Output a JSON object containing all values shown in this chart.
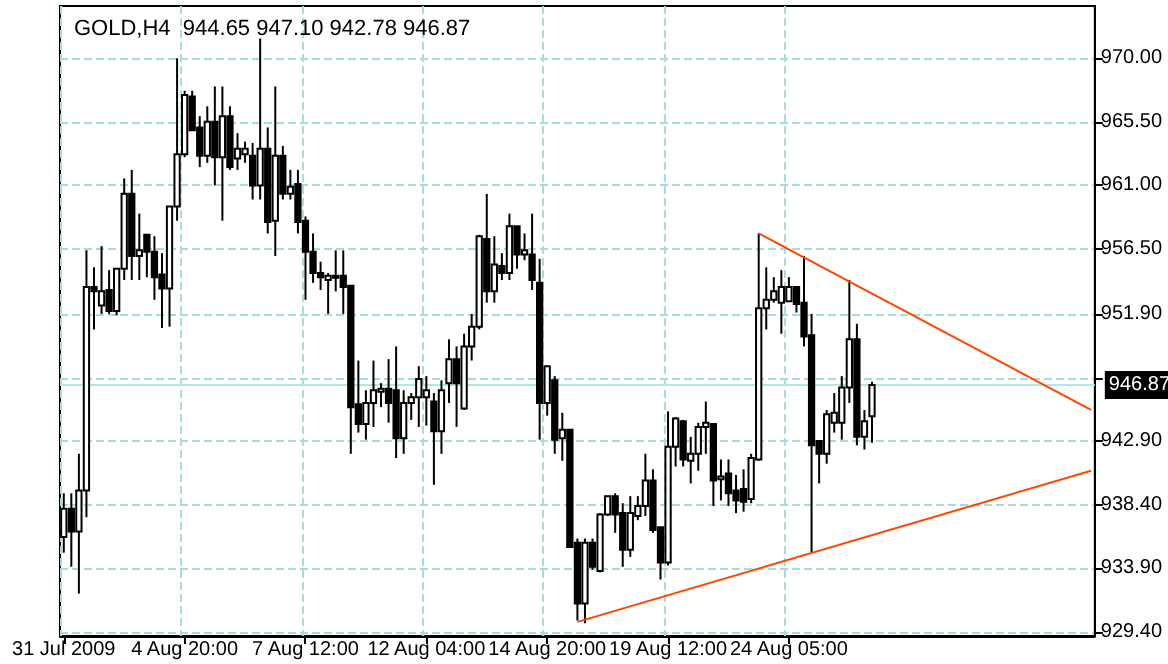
{
  "chart_data": {
    "type": "candlestick",
    "title": "GOLD,H4  944.65 947.10 942.78 946.87",
    "categories": [
      "31 Jul 2009",
      null,
      null,
      null,
      null,
      null,
      null,
      null,
      null,
      null,
      null,
      null,
      null,
      null,
      null,
      null,
      "4 Aug 20:00",
      null,
      null,
      null,
      null,
      null,
      null,
      null,
      null,
      null,
      null,
      null,
      null,
      null,
      null,
      null,
      "7 Aug 12:00",
      null,
      null,
      null,
      null,
      null,
      null,
      null,
      null,
      null,
      null,
      null,
      null,
      null,
      null,
      null,
      "12 Aug 04:00",
      null,
      null,
      null,
      null,
      null,
      null,
      null,
      null,
      null,
      null,
      null,
      null,
      null,
      null,
      null,
      "14 Aug 20:00",
      null,
      null,
      null,
      null,
      null,
      null,
      null,
      null,
      null,
      null,
      null,
      null,
      null,
      null,
      null,
      "19 Aug 12:00",
      null,
      null,
      null,
      null,
      null,
      null,
      null,
      null,
      null,
      null,
      null,
      null,
      null,
      null,
      null,
      "24 Aug 05:00",
      null,
      null,
      null,
      null,
      null,
      null,
      null,
      null,
      null,
      null,
      null,
      null,
      null,
      null,
      null,
      null,
      null,
      null,
      null,
      null,
      null,
      null,
      null,
      null,
      null,
      null,
      null,
      null,
      null,
      null,
      null,
      null,
      null,
      null,
      null,
      null,
      null,
      null,
      null,
      null
    ],
    "ohlc": [
      [
        936.1,
        939.2,
        935.0,
        938.1
      ],
      [
        938.1,
        939.2,
        934.0,
        936.5
      ],
      [
        936.5,
        942.0,
        932.1,
        939.4
      ],
      [
        939.4,
        956.4,
        937.5,
        953.8
      ],
      [
        953.8,
        955.2,
        950.8,
        953.5
      ],
      [
        952.5,
        956.7,
        951.9,
        953.5
      ],
      [
        953.6,
        955.0,
        951.9,
        952.1
      ],
      [
        952.1,
        955.1,
        951.8,
        955.1
      ],
      [
        955.1,
        961.5,
        954.3,
        960.4
      ],
      [
        960.4,
        962.1,
        954.3,
        956.0
      ],
      [
        956.0,
        959.0,
        954.3,
        956.4
      ],
      [
        957.5,
        957.5,
        954.5,
        956.3
      ],
      [
        956.3,
        957.4,
        952.9,
        954.5
      ],
      [
        954.7,
        956.2,
        950.9,
        953.7
      ],
      [
        953.7,
        959.5,
        951.0,
        959.5
      ],
      [
        959.5,
        970.0,
        958.5,
        963.2
      ],
      [
        963.2,
        967.7,
        963.0,
        967.4
      ],
      [
        967.3,
        967.7,
        964.9,
        964.9
      ],
      [
        965.1,
        965.9,
        962.3,
        963.1
      ],
      [
        963.1,
        966.6,
        962.6,
        965.5
      ],
      [
        965.5,
        968.0,
        961.0,
        963.0
      ],
      [
        963.0,
        968.0,
        958.5,
        965.9
      ],
      [
        965.9,
        966.6,
        962.1,
        962.3
      ],
      [
        962.9,
        964.7,
        962.1,
        963.6
      ],
      [
        963.2,
        964.1,
        962.6,
        963.6
      ],
      [
        963.1,
        964.0,
        960.0,
        961.0
      ],
      [
        961.0,
        971.4,
        960.0,
        963.6
      ],
      [
        963.6,
        965.1,
        957.6,
        958.4
      ],
      [
        958.5,
        968.0,
        956.0,
        963.1
      ],
      [
        963.1,
        963.8,
        960.0,
        960.4
      ],
      [
        960.4,
        962.1,
        960.0,
        960.9
      ],
      [
        961.1,
        962.1,
        957.6,
        958.4
      ],
      [
        958.5,
        958.8,
        952.9,
        956.3
      ],
      [
        956.3,
        957.6,
        954.1,
        954.8
      ],
      [
        954.8,
        955.6,
        953.6,
        954.5
      ],
      [
        954.3,
        954.8,
        951.9,
        954.6
      ],
      [
        954.5,
        956.4,
        953.5,
        954.6
      ],
      [
        954.6,
        956.4,
        951.9,
        953.8
      ],
      [
        953.9,
        953.9,
        942.0,
        945.3
      ],
      [
        945.5,
        948.6,
        943.5,
        944.1
      ],
      [
        944.1,
        946.5,
        943.0,
        945.6
      ],
      [
        945.6,
        948.6,
        943.9,
        946.5
      ],
      [
        946.4,
        947.0,
        945.3,
        946.6
      ],
      [
        946.6,
        948.7,
        944.2,
        945.6
      ],
      [
        946.5,
        949.6,
        941.7,
        943.1
      ],
      [
        943.1,
        946.5,
        942.0,
        945.6
      ],
      [
        945.6,
        946.3,
        944.4,
        946.0
      ],
      [
        946.0,
        948.2,
        943.9,
        947.3
      ],
      [
        946.0,
        947.5,
        944.0,
        946.5
      ],
      [
        945.7,
        946.3,
        939.8,
        943.6
      ],
      [
        943.6,
        947.2,
        942.0,
        946.5
      ],
      [
        947.0,
        950.1,
        945.6,
        948.7
      ],
      [
        948.7,
        949.6,
        943.9,
        947.0
      ],
      [
        945.2,
        950.5,
        945.1,
        949.6
      ],
      [
        949.6,
        951.9,
        948.6,
        951.0
      ],
      [
        951.0,
        957.5,
        950.8,
        957.4
      ],
      [
        957.2,
        960.4,
        952.7,
        953.5
      ],
      [
        953.5,
        957.4,
        952.7,
        955.4
      ],
      [
        955.3,
        956.2,
        954.3,
        954.8
      ],
      [
        954.8,
        959.0,
        954.3,
        958.1
      ],
      [
        958.1,
        958.1,
        955.1,
        956.1
      ],
      [
        956.1,
        957.6,
        955.7,
        956.4
      ],
      [
        956.1,
        959.0,
        953.6,
        954.3
      ],
      [
        954.1,
        955.8,
        943.0,
        945.6
      ],
      [
        945.6,
        948.2,
        944.7,
        948.2
      ],
      [
        947.2,
        947.5,
        942.0,
        943.0
      ],
      [
        943.1,
        944.9,
        941.5,
        943.7
      ],
      [
        943.7,
        943.7,
        935.4,
        935.4
      ],
      [
        935.7,
        936.0,
        930.2,
        931.4
      ],
      [
        931.4,
        936.0,
        930.0,
        935.7
      ],
      [
        935.7,
        936.0,
        933.8,
        934.0
      ],
      [
        933.7,
        937.8,
        933.6,
        937.7
      ],
      [
        937.7,
        939.0,
        937.6,
        939.0
      ],
      [
        939.0,
        939.2,
        936.4,
        937.7
      ],
      [
        937.8,
        938.5,
        934.0,
        935.2
      ],
      [
        935.2,
        939.0,
        934.7,
        937.8
      ],
      [
        937.6,
        939.0,
        937.3,
        938.3
      ],
      [
        938.3,
        942.0,
        937.6,
        940.1
      ],
      [
        940.1,
        940.9,
        936.4,
        936.6
      ],
      [
        936.8,
        936.8,
        933.1,
        934.3
      ],
      [
        934.3,
        945.0,
        934.1,
        942.5
      ],
      [
        942.5,
        944.6,
        941.1,
        944.5
      ],
      [
        944.3,
        944.4,
        941.1,
        941.6
      ],
      [
        941.5,
        943.2,
        939.9,
        942.0
      ],
      [
        942.0,
        944.2,
        940.8,
        943.9
      ],
      [
        943.9,
        945.7,
        942.0,
        944.2
      ],
      [
        944.1,
        944.1,
        938.3,
        940.1
      ],
      [
        940.2,
        941.6,
        938.7,
        940.4
      ],
      [
        940.6,
        941.6,
        938.3,
        939.2
      ],
      [
        939.4,
        940.5,
        937.8,
        938.7
      ],
      [
        939.5,
        940.9,
        937.9,
        938.6
      ],
      [
        938.8,
        942.0,
        938.5,
        941.7
      ],
      [
        941.6,
        957.6,
        941.5,
        952.3
      ],
      [
        952.3,
        955.2,
        950.8,
        952.9
      ],
      [
        952.9,
        954.5,
        952.7,
        953.5
      ],
      [
        952.7,
        955.0,
        950.5,
        953.8
      ],
      [
        952.8,
        954.5,
        952.8,
        953.8
      ],
      [
        953.8,
        953.8,
        952.0,
        952.6
      ],
      [
        952.7,
        956.0,
        949.6,
        950.3
      ],
      [
        950.4,
        951.9,
        935.0,
        942.6
      ],
      [
        942.9,
        942.9,
        939.9,
        942.0
      ],
      [
        942.0,
        945.1,
        941.3,
        944.8
      ],
      [
        944.2,
        946.3,
        943.5,
        944.9
      ],
      [
        944.2,
        947.5,
        943.0,
        946.7
      ],
      [
        946.7,
        954.3,
        945.6,
        950.1
      ],
      [
        950.1,
        951.2,
        942.6,
        943.2
      ],
      [
        943.2,
        945.1,
        942.3,
        944.3
      ],
      [
        944.65,
        947.1,
        942.78,
        946.87
      ],
      null,
      null,
      null,
      null,
      null,
      null,
      null,
      null,
      null,
      null,
      null,
      null,
      null,
      null,
      null,
      null,
      null,
      null,
      null,
      null,
      null,
      null,
      null,
      null,
      null,
      null,
      null,
      null,
      null
    ],
    "series": [
      {
        "type": "line",
        "color": "#ff4500",
        "values": [
          null,
          null,
          null,
          null,
          null,
          null,
          null,
          null,
          null,
          null,
          null,
          null,
          null,
          null,
          null,
          null,
          null,
          null,
          null,
          null,
          null,
          null,
          null,
          null,
          null,
          null,
          null,
          null,
          null,
          null,
          null,
          null,
          null,
          null,
          null,
          null,
          null,
          null,
          null,
          null,
          null,
          null,
          null,
          null,
          null,
          null,
          null,
          null,
          null,
          null,
          null,
          null,
          null,
          null,
          null,
          null,
          null,
          null,
          null,
          null,
          null,
          null,
          null,
          null,
          null,
          null,
          null,
          null,
          null,
          null,
          null,
          null,
          null,
          null,
          null,
          null,
          null,
          null,
          null,
          null,
          null,
          null,
          null,
          null,
          null,
          null,
          null,
          null,
          null,
          null,
          null,
          null,
          957.6,
          null,
          null,
          null,
          null,
          null,
          null,
          null,
          null,
          null,
          null,
          null,
          null,
          null,
          null,
          null,
          null,
          null,
          null,
          null,
          null,
          null,
          null,
          null,
          null,
          null,
          null,
          null,
          null,
          null,
          null,
          null,
          null,
          null,
          null,
          null,
          null,
          null,
          null,
          null,
          null,
          null,
          null,
          null,
          945.1
        ]
      },
      {
        "type": "line",
        "color": "#ff4500",
        "values": [
          null,
          null,
          null,
          null,
          null,
          null,
          null,
          null,
          null,
          null,
          null,
          null,
          null,
          null,
          null,
          null,
          null,
          null,
          null,
          null,
          null,
          null,
          null,
          null,
          null,
          null,
          null,
          null,
          null,
          null,
          null,
          null,
          null,
          null,
          null,
          null,
          null,
          null,
          null,
          null,
          null,
          null,
          null,
          null,
          null,
          null,
          null,
          null,
          null,
          null,
          null,
          null,
          null,
          null,
          null,
          null,
          null,
          null,
          null,
          null,
          null,
          null,
          null,
          null,
          null,
          null,
          null,
          null,
          930.1,
          null,
          null,
          null,
          null,
          null,
          null,
          null,
          null,
          null,
          null,
          null,
          null,
          null,
          null,
          null,
          null,
          null,
          null,
          null,
          null,
          null,
          null,
          null,
          null,
          null,
          null,
          null,
          null,
          null,
          null,
          null,
          null,
          null,
          null,
          null,
          null,
          null,
          null,
          null,
          null,
          null,
          null,
          null,
          null,
          null,
          null,
          null,
          null,
          null,
          null,
          null,
          null,
          null,
          null,
          null,
          null,
          null,
          null,
          null,
          null,
          null,
          null,
          null,
          null,
          null,
          null,
          null,
          940.8
        ]
      }
    ],
    "ylim": [
      929.1,
      973.7
    ],
    "yticks": [
      {
        "value": 929.4,
        "label": "929.40"
      },
      {
        "value": 933.9,
        "label": "933.90"
      },
      {
        "value": 938.4,
        "label": "938.40"
      },
      {
        "value": 942.9,
        "label": "942.90"
      },
      {
        "value": 947.4,
        "label": null
      },
      {
        "value": 951.9,
        "label": "951.90"
      },
      {
        "value": 956.5,
        "label": "956.50"
      },
      {
        "value": 961,
        "label": "961.00"
      },
      {
        "value": 965.5,
        "label": "965.50"
      },
      {
        "value": 970,
        "label": "970.00"
      }
    ],
    "ref_lines": [
      {
        "axis": "y",
        "value": 946.87,
        "label": "946.87",
        "color": "#b4e6e6"
      }
    ],
    "grid": true
  }
}
